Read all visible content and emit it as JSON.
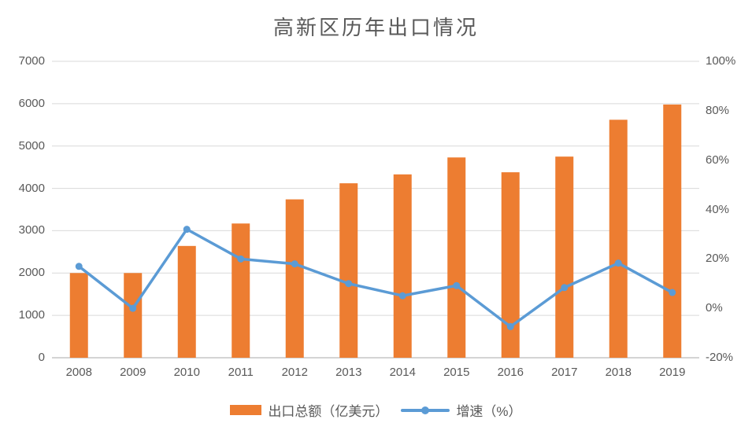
{
  "chart_data": {
    "type": "bar+line combo",
    "title": "高新区历年出口情况",
    "categories": [
      "2008",
      "2009",
      "2010",
      "2011",
      "2012",
      "2013",
      "2014",
      "2015",
      "2016",
      "2017",
      "2018",
      "2019"
    ],
    "series": [
      {
        "name": "出口总额（亿美元）",
        "type": "bar",
        "axis": "left",
        "color": "#ED7D31",
        "values": [
          2000,
          2000,
          2640,
          3170,
          3740,
          4120,
          4330,
          4730,
          4380,
          4750,
          5620,
          5980
        ]
      },
      {
        "name": "增速（%）",
        "type": "line",
        "axis": "right",
        "color": "#5B9BD5",
        "values": [
          17,
          0,
          32,
          20,
          18,
          10,
          5.1,
          9.2,
          -7.4,
          8.4,
          18.3,
          6.4
        ]
      }
    ],
    "left_axis": {
      "min": 0,
      "max": 7000,
      "tick_labels": [
        "0",
        "1000",
        "2000",
        "3000",
        "4000",
        "5000",
        "6000",
        "7000"
      ],
      "tick_values": [
        0,
        1000,
        2000,
        3000,
        4000,
        5000,
        6000,
        7000
      ]
    },
    "right_axis": {
      "min": -20,
      "max": 100,
      "tick_labels": [
        "-20%",
        "0%",
        "20%",
        "40%",
        "60%",
        "80%",
        "100%"
      ],
      "tick_values": [
        -20,
        0,
        20,
        40,
        60,
        80,
        100
      ]
    },
    "grid": true,
    "legend_position": "bottom",
    "colors": {
      "grid": "#D9D9D9",
      "baseline": "#C6C6C6",
      "text": "#595959"
    }
  }
}
